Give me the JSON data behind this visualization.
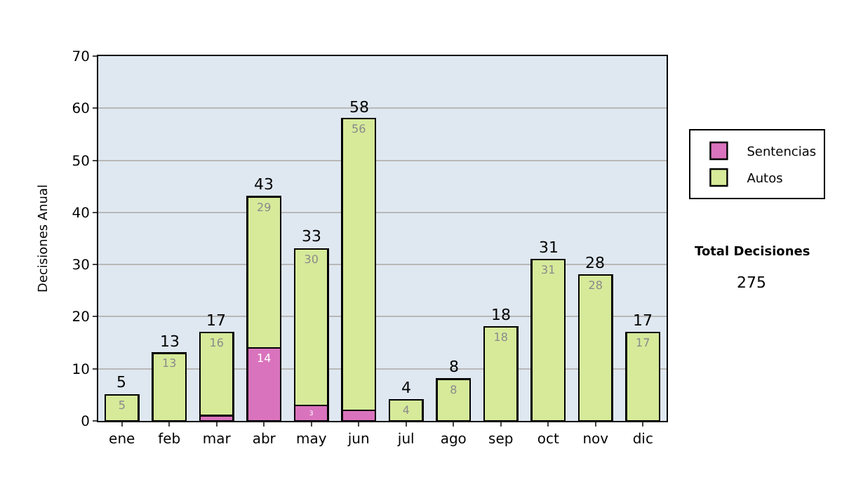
{
  "chart_data": {
    "type": "bar",
    "stacked": true,
    "ylabel": "Decisiones Anual",
    "categories": [
      "ene",
      "feb",
      "mar",
      "abr",
      "may",
      "jun",
      "jul",
      "ago",
      "sep",
      "oct",
      "nov",
      "dic"
    ],
    "series": [
      {
        "name": "Sentencias",
        "color": "#d973bd",
        "values": [
          0,
          0,
          1,
          14,
          3,
          2,
          0,
          0,
          0,
          0,
          0,
          0
        ],
        "value_labels": [
          null,
          null,
          null,
          "14",
          "3",
          null,
          null,
          null,
          null,
          null,
          null,
          null
        ]
      },
      {
        "name": "Autos",
        "color": "#d6ea9a",
        "values": [
          5,
          13,
          16,
          29,
          30,
          56,
          4,
          8,
          18,
          31,
          28,
          17
        ],
        "value_labels": [
          "5",
          "13",
          "16",
          "29",
          "30",
          "56",
          "4",
          "8",
          "18",
          "31",
          "28",
          "17"
        ]
      }
    ],
    "totals": [
      "5",
      "13",
      "17",
      "43",
      "33",
      "58",
      "4",
      "8",
      "18",
      "31",
      "28",
      "17"
    ],
    "ylim": [
      0,
      70
    ],
    "yticks": [
      0,
      10,
      20,
      30,
      40,
      50,
      60,
      70
    ],
    "grid": "y",
    "legend": "right",
    "annotations": [
      "Total Decisiones",
      "275"
    ]
  }
}
